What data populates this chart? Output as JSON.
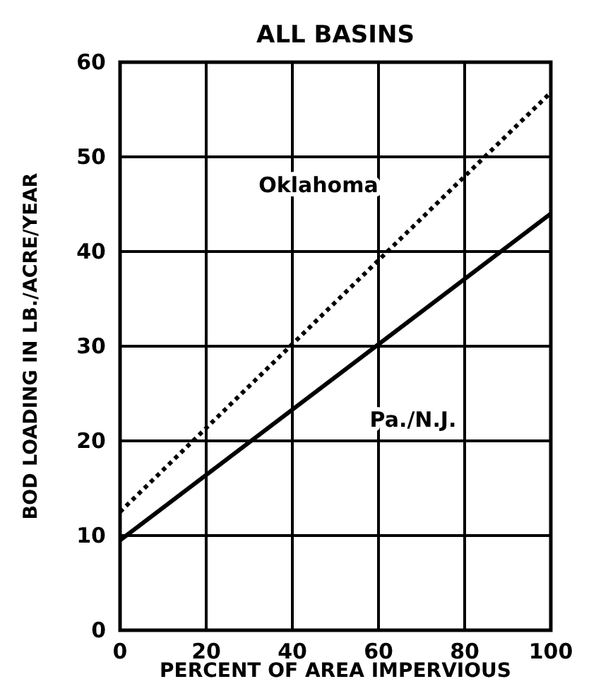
{
  "chart_data": {
    "type": "line",
    "title": "ALL BASINS",
    "xlabel": "PERCENT OF AREA IMPERVIOUS",
    "ylabel": "BOD LOADING IN LB./ACRE/YEAR",
    "x": [
      0,
      100
    ],
    "series": [
      {
        "name": "Oklahoma",
        "color": "#000000",
        "values": [
          12.5,
          56.8
        ],
        "line_style": "dotted"
      },
      {
        "name": "Pa./N.J.",
        "color": "#000000",
        "values": [
          9.5,
          44
        ],
        "line_style": "solid"
      }
    ],
    "xlim": [
      0,
      100
    ],
    "xticks": [
      0,
      20,
      40,
      60,
      80,
      100
    ],
    "ylim": [
      0,
      60
    ],
    "yticks": [
      0,
      10,
      20,
      30,
      40,
      50,
      60
    ],
    "grid": true,
    "marker": "none"
  }
}
